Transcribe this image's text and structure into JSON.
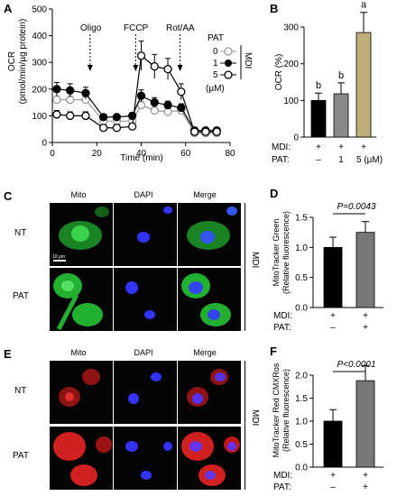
{
  "panels": {
    "A": {
      "label": "A",
      "ylabel_line1": "OCR",
      "ylabel_line2": "(pmol/min/µg protein)",
      "xlabel": "Time (min)",
      "annotations": [
        "Oligo",
        "FCCP",
        "Rot/AA"
      ],
      "legend_title": "PAT",
      "legend_group": "MDI",
      "legend_unit": "(µM)",
      "legend_items": [
        "0",
        "1",
        "5"
      ]
    },
    "B": {
      "label": "B",
      "ylabel": "OCR (%)",
      "row_labels": [
        "MDI:",
        "PAT:"
      ],
      "mdi_values": [
        "+",
        "+",
        "+"
      ],
      "pat_values": [
        "–",
        "1",
        "5 (µM)"
      ],
      "sig_letters": [
        "b",
        "b",
        "a"
      ]
    },
    "C": {
      "label": "C",
      "headers": [
        "Mito",
        "DAPI",
        "Merge"
      ],
      "rows": [
        "NT",
        "PAT"
      ],
      "side_label": "MDI",
      "scale_bar": "10 µm"
    },
    "D": {
      "label": "D",
      "ylabel_line1": "MitoTracker Green",
      "ylabel_line2": "(Relative fluorescence)",
      "pvalue": "P=0.0043",
      "row_labels": [
        "MDI:",
        "PAT:"
      ],
      "mdi_values": [
        "+",
        "+"
      ],
      "pat_values": [
        "–",
        "+"
      ]
    },
    "E": {
      "label": "E",
      "headers": [
        "Mito",
        "DAPI",
        "Merge"
      ],
      "rows": [
        "NT",
        "PAT"
      ],
      "side_label": "MDI"
    },
    "F": {
      "label": "F",
      "ylabel_line1": "MitoTracker Red CMXRos",
      "ylabel_line2": "(Relative fluorescence)",
      "pvalue": "P<0.0001",
      "row_labels": [
        "MDI:",
        "PAT:"
      ],
      "mdi_values": [
        "+",
        "+"
      ],
      "pat_values": [
        "–",
        "+"
      ]
    }
  },
  "chart_data": [
    {
      "id": "A",
      "type": "line",
      "xlabel": "Time (min)",
      "ylabel": "OCR (pmol/min/µg protein)",
      "xlim": [
        0,
        80
      ],
      "ylim": [
        0,
        500
      ],
      "xticks": [
        0,
        20,
        40,
        60,
        80
      ],
      "yticks": [
        0,
        100,
        200,
        300,
        400,
        500
      ],
      "x": [
        2,
        8,
        15,
        23,
        29,
        36,
        40,
        46,
        52,
        58,
        64,
        69,
        74
      ],
      "series": [
        {
          "name": "0",
          "values": [
            160,
            160,
            160,
            80,
            80,
            80,
            140,
            120,
            115,
            120,
            35,
            35,
            35
          ],
          "err": [
            15,
            15,
            15,
            10,
            10,
            10,
            15,
            15,
            12,
            12,
            8,
            8,
            8
          ],
          "marker": "open-grey",
          "color": "#9a9a9a"
        },
        {
          "name": "1",
          "values": [
            200,
            195,
            185,
            95,
            95,
            100,
            175,
            150,
            140,
            130,
            45,
            45,
            45
          ],
          "err": [
            25,
            25,
            22,
            12,
            12,
            12,
            22,
            18,
            15,
            15,
            8,
            8,
            8
          ],
          "marker": "filled",
          "color": "#000000"
        },
        {
          "name": "5",
          "values": [
            105,
            100,
            100,
            55,
            55,
            60,
            325,
            285,
            275,
            190,
            40,
            40,
            40
          ],
          "err": [
            15,
            15,
            15,
            10,
            10,
            12,
            55,
            45,
            40,
            30,
            10,
            10,
            10
          ],
          "marker": "open-black",
          "color": "#000000"
        }
      ],
      "event_x": [
        17,
        37.5,
        57.5
      ]
    },
    {
      "id": "B",
      "type": "bar",
      "ylabel": "OCR (%)",
      "ylim": [
        0,
        300
      ],
      "yticks": [
        0,
        100,
        200,
        300
      ],
      "values": [
        100,
        118,
        285
      ],
      "err": [
        20,
        30,
        55
      ],
      "colors": [
        "#000000",
        "#888888",
        "#bfae7a"
      ],
      "pat": [
        "–",
        "1",
        "5 (µM)"
      ]
    },
    {
      "id": "D",
      "type": "bar",
      "ylabel": "MitoTracker Green (Relative fluorescence)",
      "ylim": [
        0,
        1.5
      ],
      "yticks": [
        0.0,
        0.5,
        1.0,
        1.5
      ],
      "values": [
        1.0,
        1.25
      ],
      "err": [
        0.17,
        0.18
      ],
      "colors": [
        "#000000",
        "#777777"
      ],
      "pvalue": "P=0.0043"
    },
    {
      "id": "F",
      "type": "bar",
      "ylabel": "MitoTracker Red CMXRos (Relative fluorescence)",
      "ylim": [
        0,
        2.0
      ],
      "yticks": [
        0.0,
        0.5,
        1.0,
        1.5,
        2.0
      ],
      "values": [
        1.0,
        1.88
      ],
      "err": [
        0.25,
        0.33
      ],
      "colors": [
        "#000000",
        "#777777"
      ],
      "pvalue": "P<0.0001"
    }
  ]
}
